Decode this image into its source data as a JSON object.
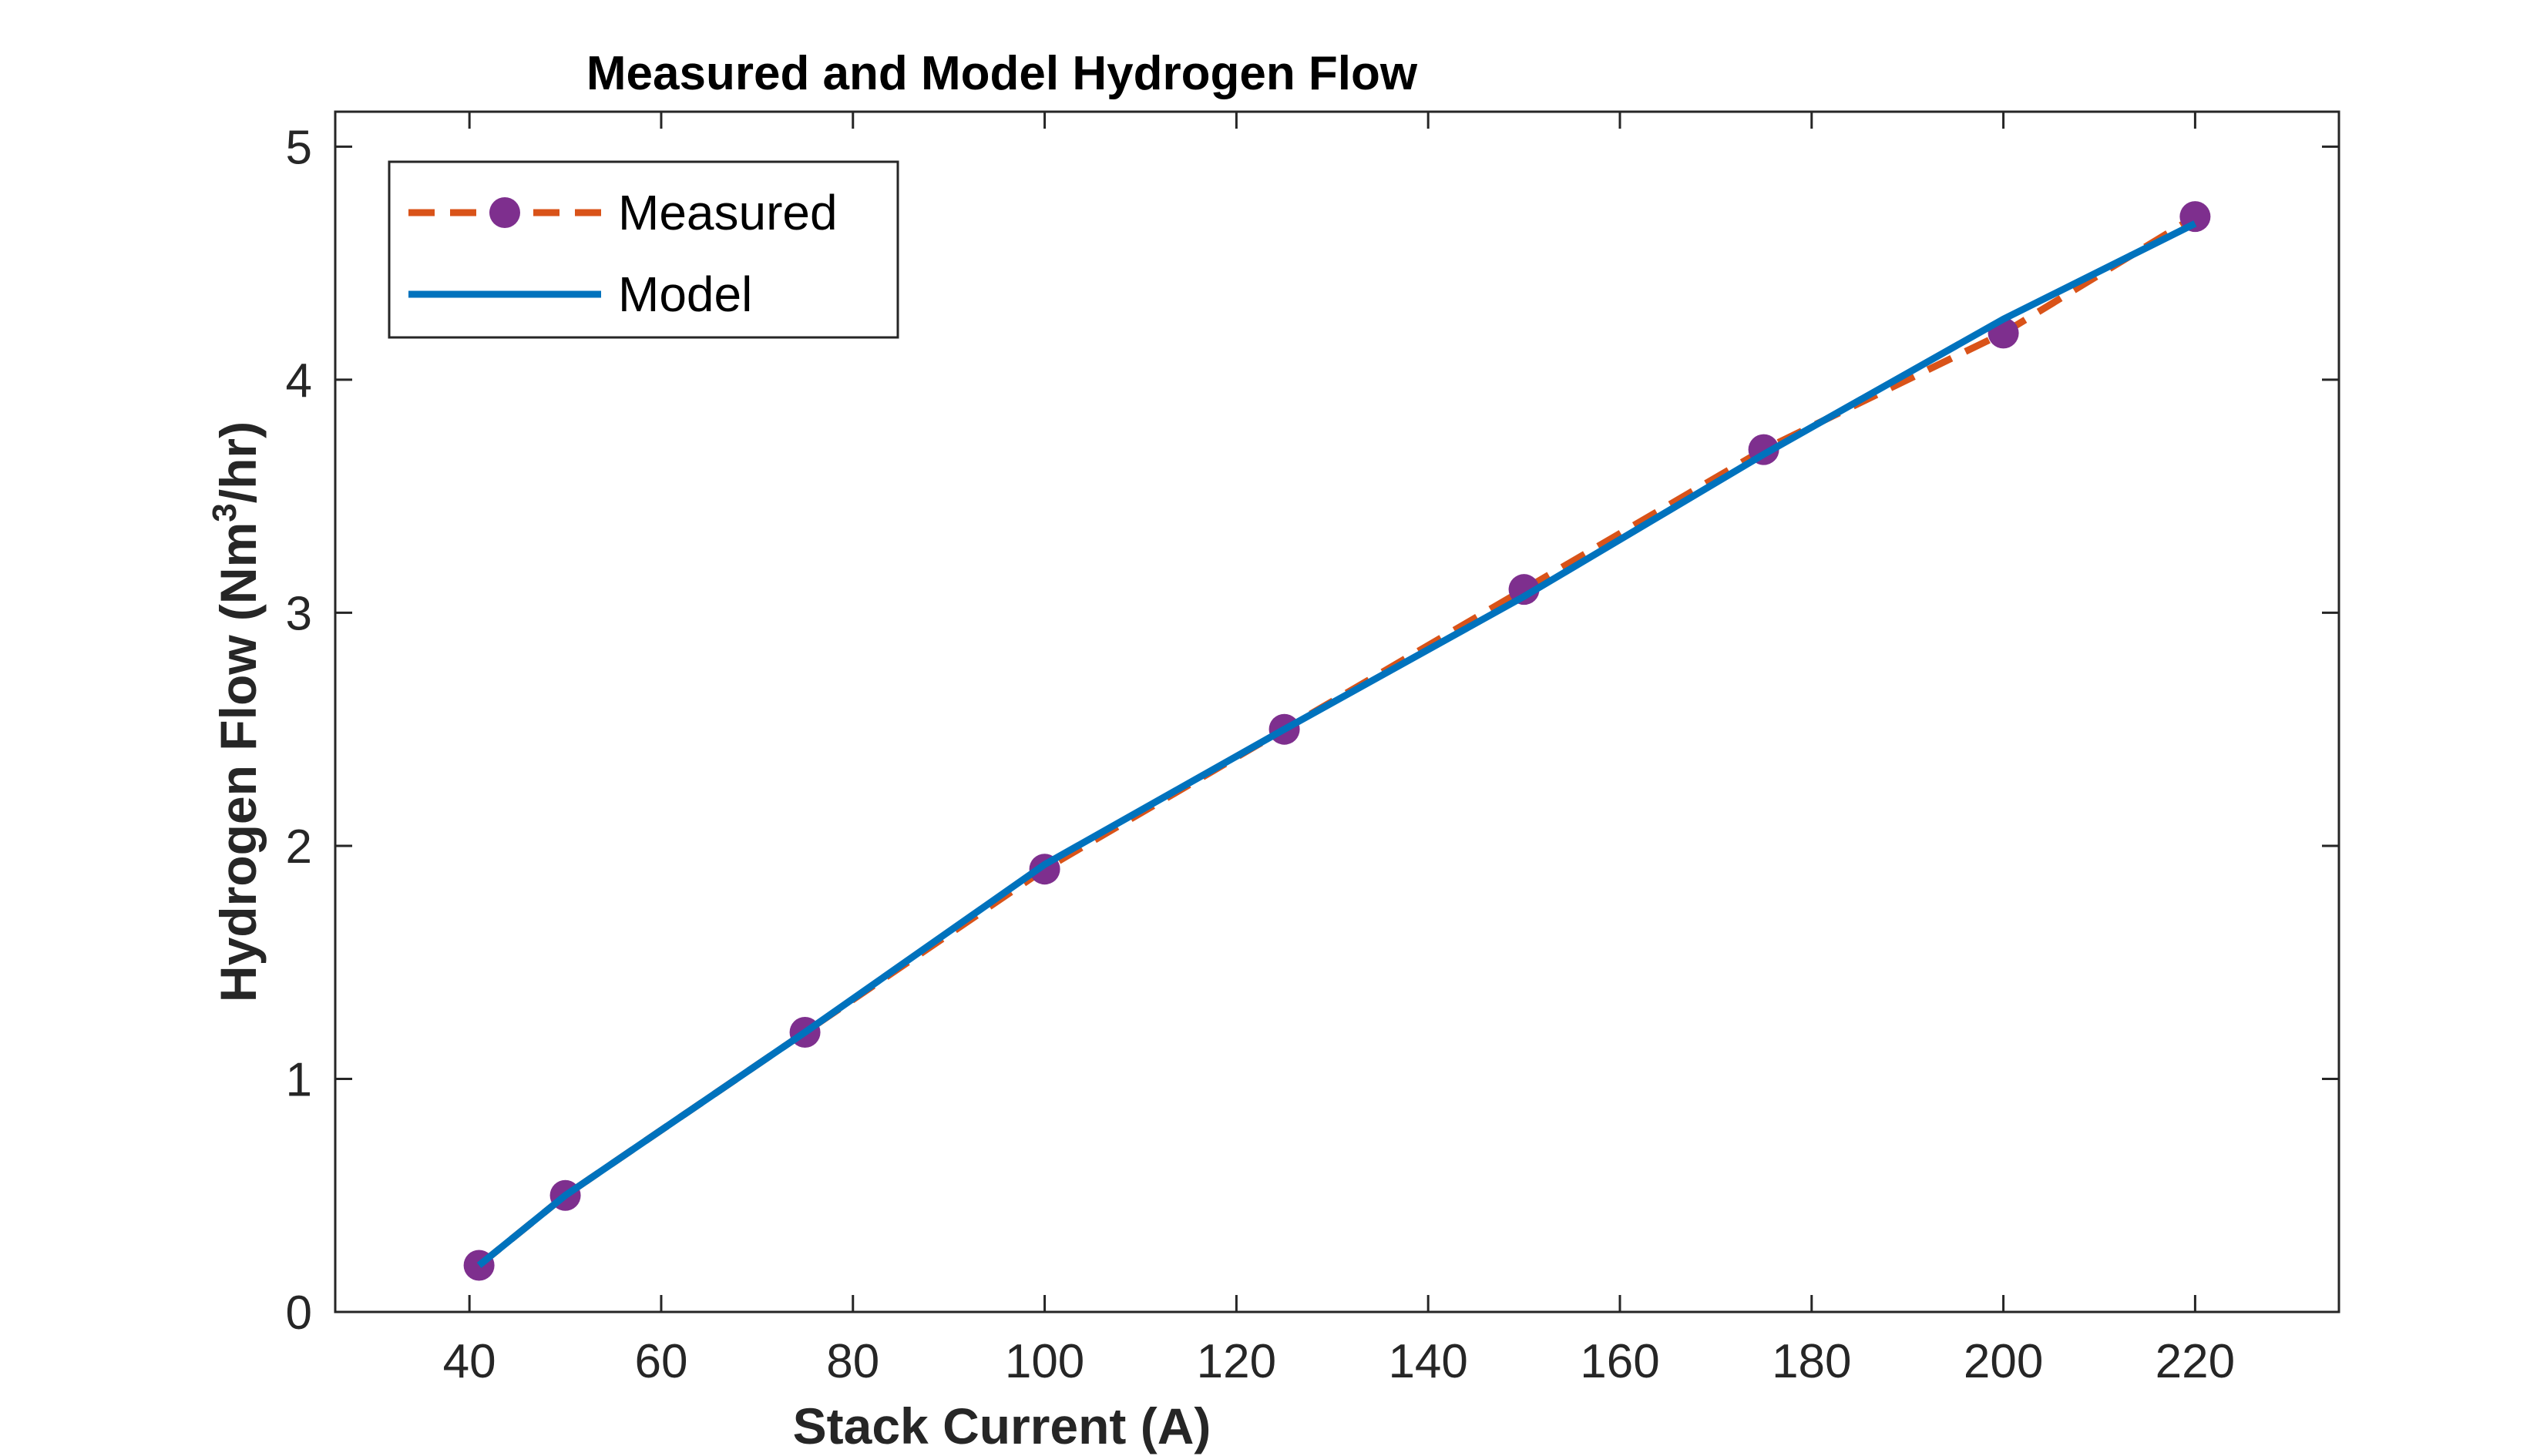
{
  "chart_data": {
    "type": "line",
    "title": "Measured and Model Hydrogen Flow",
    "xlabel": "Stack Current (A)",
    "ylabel_main": "Hydrogen Flow (Nm",
    "ylabel_sup": "3",
    "ylabel_tail": "/hr)",
    "xlim": [
      26,
      235
    ],
    "ylim": [
      0,
      5.15
    ],
    "xticks": [
      40,
      60,
      80,
      100,
      120,
      140,
      160,
      180,
      200,
      220
    ],
    "yticks": [
      0,
      1,
      2,
      3,
      4,
      5
    ],
    "grid": false,
    "legend_position": "top-left",
    "series": [
      {
        "name": "Measured",
        "style": "dashed-with-markers",
        "line_color": "#D95319",
        "marker_color": "#7E2F8E",
        "x": [
          41,
          50,
          75,
          100,
          125,
          150,
          175,
          200,
          220
        ],
        "y": [
          0.2,
          0.5,
          1.2,
          1.9,
          2.5,
          3.1,
          3.7,
          4.2,
          4.7
        ]
      },
      {
        "name": "Model",
        "style": "solid",
        "line_color": "#0072BD",
        "x": [
          41,
          50,
          75,
          100,
          125,
          150,
          175,
          200,
          220
        ],
        "y": [
          0.2,
          0.5,
          1.2,
          1.92,
          2.5,
          3.07,
          3.68,
          4.26,
          4.67
        ]
      }
    ]
  }
}
